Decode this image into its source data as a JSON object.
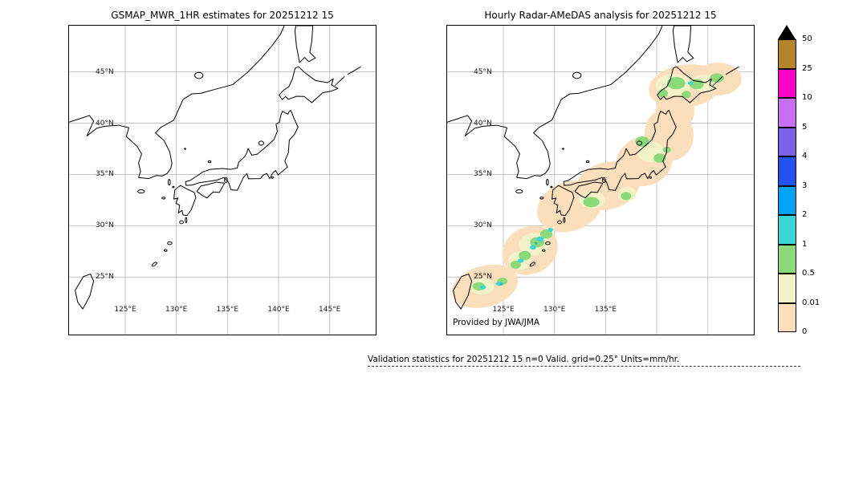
{
  "figure": {
    "background": "#ffffff"
  },
  "left_panel": {
    "title": "GSMAP_MWR_1HR estimates for 20251212 15",
    "lat_ticks": [
      "45°N",
      "40°N",
      "35°N",
      "30°N",
      "25°N"
    ],
    "lon_ticks": [
      "125°E",
      "130°E",
      "135°E",
      "140°E",
      "145°E"
    ]
  },
  "right_panel": {
    "title": "Hourly Radar-AMeDAS analysis for 20251212 15",
    "lat_ticks": [
      "45°N",
      "40°N",
      "35°N",
      "30°N",
      "25°N"
    ],
    "lon_ticks": [
      "125°E",
      "130°E",
      "135°E"
    ],
    "credit": "Provided by JWA/JMA"
  },
  "colorbar": {
    "tick_labels": [
      "50",
      "25",
      "10",
      "5",
      "4",
      "3",
      "2",
      "1",
      "0.5",
      "0.01",
      "0"
    ],
    "segment_colors_top_to_bottom": [
      "#b5832b",
      "#ff00c8",
      "#c86ef0",
      "#7a63e8",
      "#2351ee",
      "#00a2f5",
      "#3cd5d5",
      "#8bd97b",
      "#f2f2c8",
      "#fbdfbd"
    ],
    "overflow_color": "#000000",
    "units": "mm/hr"
  },
  "caption": "Validation statistics for 20251212 15  n=0 Valid. grid=0.25° Units=mm/hr.",
  "map_style": {
    "coastline_color": "#000000",
    "grid_color": "#c4c4c4",
    "rain_trace_color": "#fbdfbd",
    "rain_light_color": "#f2f2c8",
    "rain_green_color": "#8bd97b",
    "rain_cyan_color": "#3cd5d5",
    "rain_teal_color": "#2fbf9f"
  }
}
